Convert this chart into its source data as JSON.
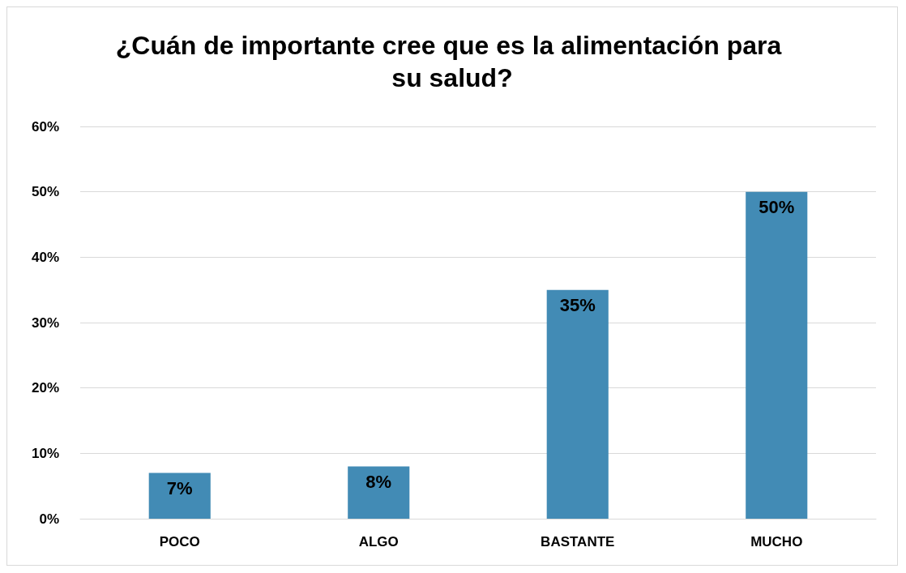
{
  "chart_data": {
    "type": "bar",
    "title": "¿Cuán de importante cree que es la alimentación para su salud?",
    "categories": [
      "POCO",
      "ALGO",
      "BASTANTE",
      "MUCHO"
    ],
    "values": [
      7,
      8,
      35,
      50
    ],
    "value_labels": [
      "7%",
      "8%",
      "35%",
      "50%"
    ],
    "color": "#428bb5",
    "ylim": [
      0,
      60
    ],
    "yticks": [
      {
        "value": 0,
        "label": "0%"
      },
      {
        "value": 10,
        "label": "10%"
      },
      {
        "value": 20,
        "label": "20%"
      },
      {
        "value": 30,
        "label": "30%"
      },
      {
        "value": 40,
        "label": "40%"
      },
      {
        "value": 50,
        "label": "50%"
      },
      {
        "value": 60,
        "label": "60%"
      }
    ],
    "grid": "y"
  }
}
